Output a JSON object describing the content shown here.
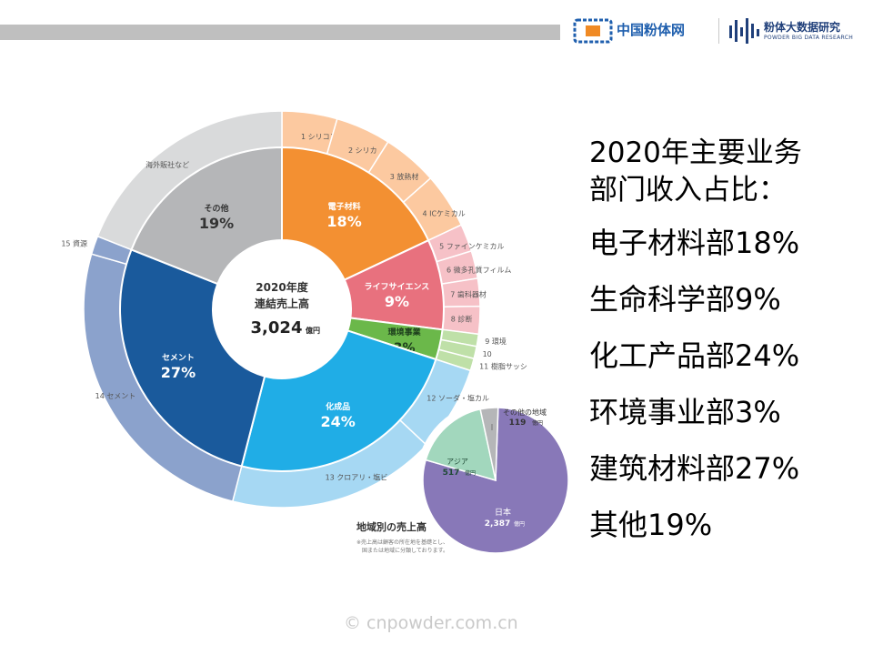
{
  "header": {
    "logo_left_text": "中国粉体网",
    "logo_right_text": "粉体大数据研究",
    "logo_right_sub": "POWDER BIG DATA RESEARCH"
  },
  "chart_data": {
    "type": "pie",
    "center_label_line1": "2020年度",
    "center_label_line2": "連結売上高",
    "center_value": "3,024",
    "center_unit": "億円",
    "inner_segments": [
      {
        "label": "電子材料",
        "value": 18,
        "display": "18%",
        "color": "#f39032"
      },
      {
        "label": "ライフサイエンス",
        "value": 9,
        "display": "9%",
        "color": "#e8717e"
      },
      {
        "label": "環境事業",
        "value": 3,
        "display": "3%",
        "color": "#6bb84a"
      },
      {
        "label": "化成品",
        "value": 24,
        "display": "24%",
        "color": "#20ade6"
      },
      {
        "label": "セメント",
        "value": 27,
        "display": "27%",
        "color": "#1a5a9c"
      },
      {
        "label": "その他",
        "value": 19,
        "display": "19%",
        "color": "#b5b6b8"
      }
    ],
    "outer_segments": [
      {
        "num": "1",
        "label": "シリコン",
        "value": 4.5,
        "color": "#fcc9a0"
      },
      {
        "num": "2",
        "label": "シリカ",
        "value": 4.5,
        "color": "#fcc9a0"
      },
      {
        "num": "3",
        "label": "放熱材",
        "value": 4.5,
        "color": "#fcc9a0"
      },
      {
        "num": "4",
        "label": "ICケミカル",
        "value": 4.5,
        "color": "#fcc9a0"
      },
      {
        "num": "5",
        "label": "ファインケミカル",
        "value": 2.25,
        "color": "#f6c1c7"
      },
      {
        "num": "6",
        "label": "微多孔質フィルム",
        "value": 2.25,
        "color": "#f6c1c7"
      },
      {
        "num": "7",
        "label": "歯科器材",
        "value": 2.25,
        "color": "#f6c1c7"
      },
      {
        "num": "8",
        "label": "診断",
        "value": 2.25,
        "color": "#f6c1c7"
      },
      {
        "num": "9",
        "label": "環境",
        "value": 1,
        "color": "#bfe0a8"
      },
      {
        "num": "10",
        "label": "",
        "value": 1,
        "color": "#bfe0a8"
      },
      {
        "num": "11",
        "label": "樹脂サッシ",
        "value": 1,
        "color": "#bfe0a8"
      },
      {
        "num": "12",
        "label": "ソーダ・塩カル",
        "value": 7,
        "color": "#a6d8f3"
      },
      {
        "num": "13",
        "label": "クロアリ・塩ビ",
        "value": 17,
        "color": "#a6d8f3"
      },
      {
        "num": "14",
        "label": "セメント",
        "value": 25.5,
        "color": "#8ba2cc"
      },
      {
        "num": "15",
        "label": "資源",
        "value": 1.5,
        "color": "#8ba2cc"
      },
      {
        "num": "",
        "label": "海外販社など",
        "value": 19,
        "color": "#d9dadb"
      }
    ],
    "regional": {
      "title": "地域別の売上高",
      "note1": "※売上高は顧客の所在地を基礎とし、",
      "note2": "国または地域に分類しております。",
      "segments": [
        {
          "label": "日本",
          "value": 2387,
          "display": "2,387",
          "unit": "億円",
          "color": "#8878b8"
        },
        {
          "label": "アジア",
          "value": 517,
          "display": "517",
          "unit": "億円",
          "color": "#a2d7bd"
        },
        {
          "label": "その他の地域",
          "value": 119,
          "display": "119",
          "unit": "億円",
          "color": "#b5b6b8"
        }
      ]
    }
  },
  "summary": {
    "heading_line1": "2020年主要业务",
    "heading_line2": "部门收入占比：",
    "items": [
      "电子材料部18%",
      "生命科学部9%",
      "化工产品部24%",
      "环境事业部3%",
      "建筑材料部27%",
      "其他19%"
    ]
  },
  "watermark": "© cnpowder.com.cn"
}
